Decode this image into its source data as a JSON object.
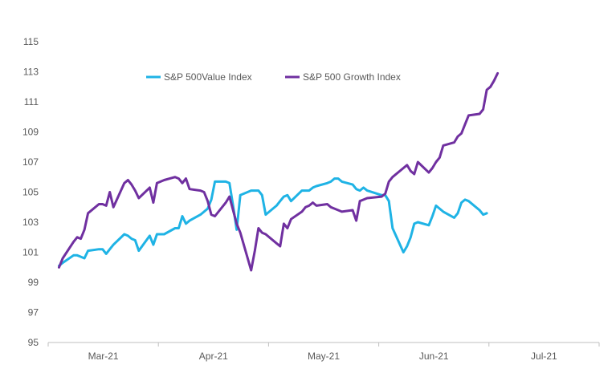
{
  "chart_data": {
    "type": "line",
    "title": "",
    "xlabel": "",
    "ylabel": "",
    "ylim": [
      95,
      115
    ],
    "yticks": [
      95,
      97,
      99,
      101,
      103,
      105,
      107,
      109,
      111,
      113,
      115
    ],
    "x_range": [
      "2021-03-01",
      "2021-07-31"
    ],
    "x_categories": [
      "Mar-21",
      "Apr-21",
      "May-21",
      "Jun-21",
      "Jul-21"
    ],
    "grid": false,
    "legend": "top",
    "series": [
      {
        "name": "S&P 500Value Index",
        "color": "#1fb3e5",
        "points": [
          [
            "2021-03-04",
            100.1
          ],
          [
            "2021-03-05",
            100.3
          ],
          [
            "2021-03-08",
            100.8
          ],
          [
            "2021-03-09",
            100.8
          ],
          [
            "2021-03-10",
            100.7
          ],
          [
            "2021-03-11",
            100.6
          ],
          [
            "2021-03-12",
            101.1
          ],
          [
            "2021-03-15",
            101.2
          ],
          [
            "2021-03-16",
            101.2
          ],
          [
            "2021-03-17",
            100.9
          ],
          [
            "2021-03-18",
            101.2
          ],
          [
            "2021-03-19",
            101.5
          ],
          [
            "2021-03-22",
            102.2
          ],
          [
            "2021-03-23",
            102.1
          ],
          [
            "2021-03-24",
            101.9
          ],
          [
            "2021-03-25",
            101.8
          ],
          [
            "2021-03-26",
            101.1
          ],
          [
            "2021-03-29",
            102.1
          ],
          [
            "2021-03-30",
            101.5
          ],
          [
            "2021-03-31",
            102.2
          ],
          [
            "2021-04-01",
            102.2
          ],
          [
            "2021-04-02",
            102.2
          ],
          [
            "2021-04-05",
            102.6
          ],
          [
            "2021-04-06",
            102.6
          ],
          [
            "2021-04-07",
            103.4
          ],
          [
            "2021-04-08",
            102.9
          ],
          [
            "2021-04-09",
            103.1
          ],
          [
            "2021-04-12",
            103.5
          ],
          [
            "2021-04-13",
            103.7
          ],
          [
            "2021-04-14",
            103.9
          ],
          [
            "2021-04-15",
            104.5
          ],
          [
            "2021-04-16",
            105.7
          ],
          [
            "2021-04-19",
            105.7
          ],
          [
            "2021-04-20",
            105.6
          ],
          [
            "2021-04-21",
            104.1
          ],
          [
            "2021-04-22",
            102.5
          ],
          [
            "2021-04-23",
            104.8
          ],
          [
            "2021-04-26",
            105.1
          ],
          [
            "2021-04-27",
            105.1
          ],
          [
            "2021-04-28",
            105.1
          ],
          [
            "2021-04-29",
            104.8
          ],
          [
            "2021-04-30",
            103.5
          ],
          [
            "2021-05-03",
            104.1
          ],
          [
            "2021-05-04",
            104.4
          ],
          [
            "2021-05-05",
            104.7
          ],
          [
            "2021-05-06",
            104.8
          ],
          [
            "2021-05-07",
            104.4
          ],
          [
            "2021-05-10",
            105.1
          ],
          [
            "2021-05-11",
            105.1
          ],
          [
            "2021-05-12",
            105.1
          ],
          [
            "2021-05-13",
            105.3
          ],
          [
            "2021-05-14",
            105.4
          ],
          [
            "2021-05-17",
            105.6
          ],
          [
            "2021-05-18",
            105.7
          ],
          [
            "2021-05-19",
            105.9
          ],
          [
            "2021-05-20",
            105.9
          ],
          [
            "2021-05-21",
            105.7
          ],
          [
            "2021-05-24",
            105.5
          ],
          [
            "2021-05-25",
            105.2
          ],
          [
            "2021-05-26",
            105.1
          ],
          [
            "2021-05-27",
            105.3
          ],
          [
            "2021-05-28",
            105.1
          ],
          [
            "2021-06-01",
            104.8
          ],
          [
            "2021-06-02",
            104.8
          ],
          [
            "2021-06-03",
            104.4
          ],
          [
            "2021-06-04",
            102.6
          ],
          [
            "2021-06-07",
            101.0
          ],
          [
            "2021-06-08",
            101.4
          ],
          [
            "2021-06-09",
            102.0
          ],
          [
            "2021-06-10",
            102.9
          ],
          [
            "2021-06-11",
            103.0
          ],
          [
            "2021-06-14",
            102.8
          ],
          [
            "2021-06-15",
            103.4
          ],
          [
            "2021-06-16",
            104.1
          ],
          [
            "2021-06-17",
            103.9
          ],
          [
            "2021-06-18",
            103.7
          ],
          [
            "2021-06-21",
            103.3
          ],
          [
            "2021-06-22",
            103.6
          ],
          [
            "2021-06-23",
            104.3
          ],
          [
            "2021-06-24",
            104.5
          ],
          [
            "2021-06-25",
            104.4
          ],
          [
            "2021-06-28",
            103.8
          ],
          [
            "2021-06-29",
            103.5
          ],
          [
            "2021-06-30",
            103.6
          ]
        ]
      },
      {
        "name": "S&P 500 Growth Index",
        "color": "#7030a0",
        "points": [
          [
            "2021-03-04",
            100.0
          ],
          [
            "2021-03-05",
            100.6
          ],
          [
            "2021-03-08",
            101.7
          ],
          [
            "2021-03-09",
            102.0
          ],
          [
            "2021-03-10",
            101.9
          ],
          [
            "2021-03-11",
            102.5
          ],
          [
            "2021-03-12",
            103.6
          ],
          [
            "2021-03-15",
            104.2
          ],
          [
            "2021-03-16",
            104.2
          ],
          [
            "2021-03-17",
            104.1
          ],
          [
            "2021-03-18",
            105.0
          ],
          [
            "2021-03-19",
            104.0
          ],
          [
            "2021-03-22",
            105.6
          ],
          [
            "2021-03-23",
            105.8
          ],
          [
            "2021-03-24",
            105.5
          ],
          [
            "2021-03-25",
            105.1
          ],
          [
            "2021-03-26",
            104.6
          ],
          [
            "2021-03-29",
            105.3
          ],
          [
            "2021-03-30",
            104.3
          ],
          [
            "2021-03-31",
            105.6
          ],
          [
            "2021-04-01",
            105.7
          ],
          [
            "2021-04-02",
            105.8
          ],
          [
            "2021-04-05",
            106.0
          ],
          [
            "2021-04-06",
            105.9
          ],
          [
            "2021-04-07",
            105.6
          ],
          [
            "2021-04-08",
            105.9
          ],
          [
            "2021-04-09",
            105.2
          ],
          [
            "2021-04-12",
            105.1
          ],
          [
            "2021-04-13",
            105.0
          ],
          [
            "2021-04-14",
            104.4
          ],
          [
            "2021-04-15",
            103.5
          ],
          [
            "2021-04-16",
            103.4
          ],
          [
            "2021-04-19",
            104.3
          ],
          [
            "2021-04-20",
            104.7
          ],
          [
            "2021-04-21",
            103.8
          ],
          [
            "2021-04-22",
            102.9
          ],
          [
            "2021-04-23",
            102.3
          ],
          [
            "2021-04-26",
            99.8
          ],
          [
            "2021-04-27",
            101.1
          ],
          [
            "2021-04-28",
            102.6
          ],
          [
            "2021-04-29",
            102.3
          ],
          [
            "2021-04-30",
            102.2
          ],
          [
            "2021-05-03",
            101.6
          ],
          [
            "2021-05-04",
            101.4
          ],
          [
            "2021-05-05",
            102.9
          ],
          [
            "2021-05-06",
            102.6
          ],
          [
            "2021-05-07",
            103.2
          ],
          [
            "2021-05-10",
            103.7
          ],
          [
            "2021-05-11",
            104.0
          ],
          [
            "2021-05-12",
            104.1
          ],
          [
            "2021-05-13",
            104.3
          ],
          [
            "2021-05-14",
            104.1
          ],
          [
            "2021-05-17",
            104.2
          ],
          [
            "2021-05-18",
            104.0
          ],
          [
            "2021-05-19",
            103.9
          ],
          [
            "2021-05-20",
            103.8
          ],
          [
            "2021-05-21",
            103.7
          ],
          [
            "2021-05-24",
            103.8
          ],
          [
            "2021-05-25",
            103.1
          ],
          [
            "2021-05-26",
            104.4
          ],
          [
            "2021-05-27",
            104.5
          ],
          [
            "2021-05-28",
            104.6
          ],
          [
            "2021-06-01",
            104.7
          ],
          [
            "2021-06-02",
            104.9
          ],
          [
            "2021-06-03",
            105.7
          ],
          [
            "2021-06-04",
            106.0
          ],
          [
            "2021-06-07",
            106.6
          ],
          [
            "2021-06-08",
            106.8
          ],
          [
            "2021-06-09",
            106.4
          ],
          [
            "2021-06-10",
            106.2
          ],
          [
            "2021-06-11",
            107.0
          ],
          [
            "2021-06-14",
            106.3
          ],
          [
            "2021-06-15",
            106.6
          ],
          [
            "2021-06-16",
            107.0
          ],
          [
            "2021-06-17",
            107.3
          ],
          [
            "2021-06-18",
            108.1
          ],
          [
            "2021-06-21",
            108.3
          ],
          [
            "2021-06-22",
            108.7
          ],
          [
            "2021-06-23",
            108.9
          ],
          [
            "2021-06-24",
            109.5
          ],
          [
            "2021-06-25",
            110.1
          ],
          [
            "2021-06-28",
            110.2
          ],
          [
            "2021-06-29",
            110.5
          ],
          [
            "2021-06-30",
            111.8
          ],
          [
            "2021-07-01",
            112.0
          ],
          [
            "2021-07-02",
            112.4
          ],
          [
            "2021-07-03",
            112.9
          ]
        ]
      }
    ]
  }
}
